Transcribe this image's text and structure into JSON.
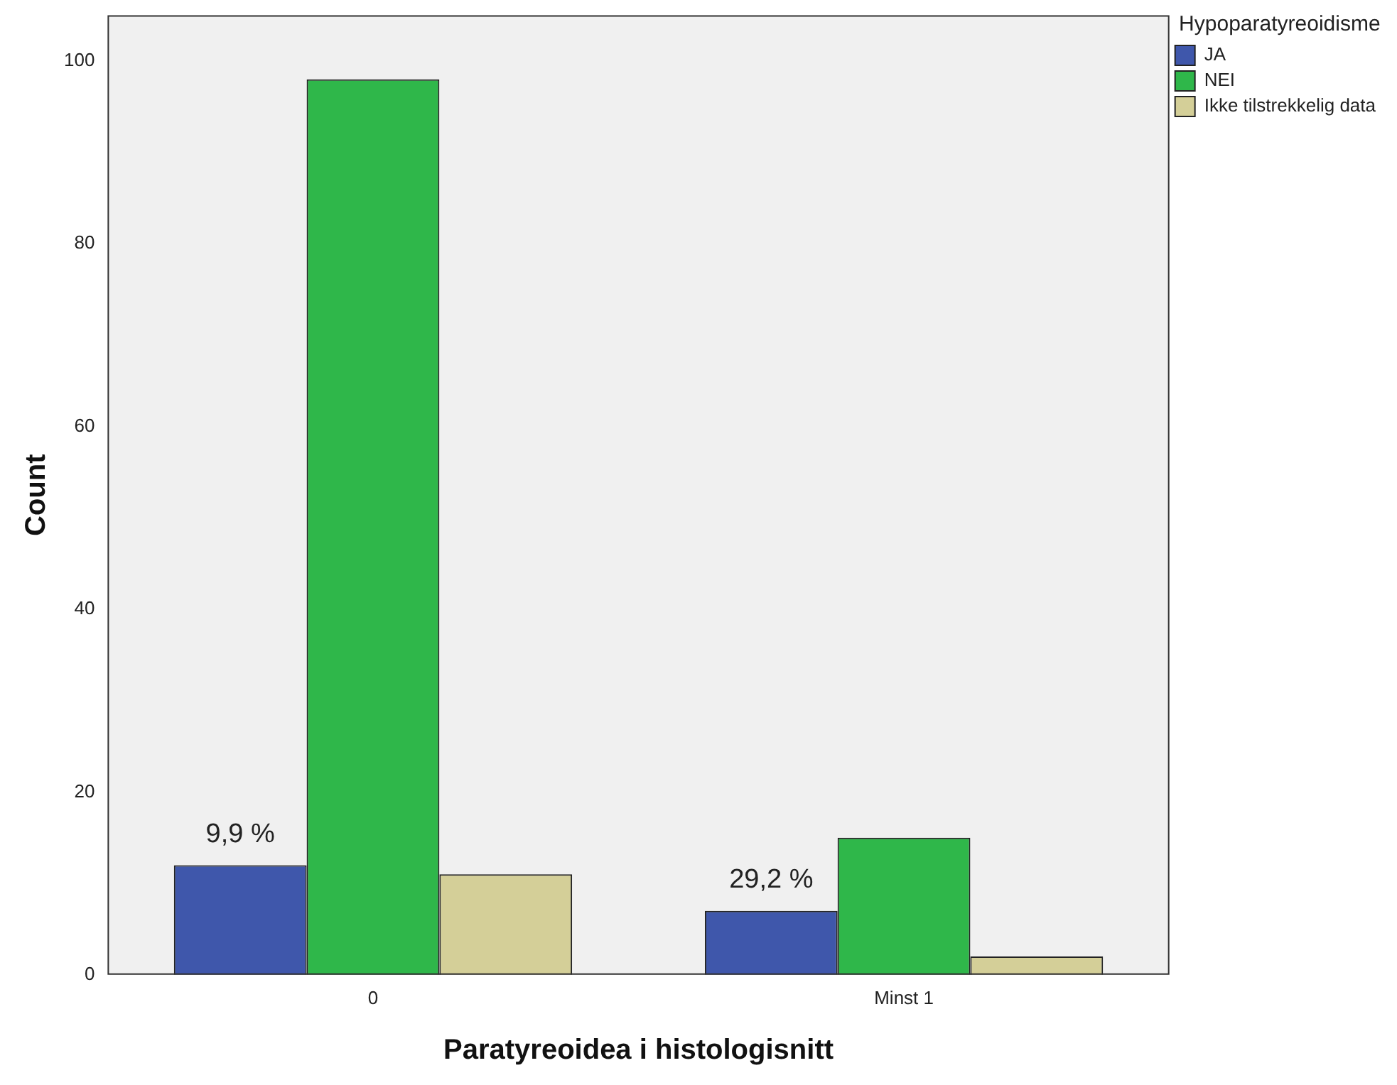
{
  "chart_data": {
    "type": "bar",
    "xlabel": "Paratyreoidea i histologisnitt",
    "ylabel": "Count",
    "legend_title": "Hypoparatyreoidisme",
    "categories": [
      "0",
      "Minst 1"
    ],
    "series": [
      {
        "name": "JA",
        "color": "#3f57ab",
        "values": [
          12,
          7
        ]
      },
      {
        "name": "NEI",
        "color": "#2fb74a",
        "values": [
          98,
          15
        ]
      },
      {
        "name": "Ikke tilstrekkelig data",
        "color": "#d4cf98",
        "values": [
          11,
          2
        ]
      }
    ],
    "ylim": [
      0,
      105
    ],
    "yticks": [
      0,
      20,
      40,
      60,
      80,
      100
    ],
    "grid": false,
    "legend": "top right",
    "annotations": [
      "9,9 %",
      "29,2 %"
    ]
  }
}
